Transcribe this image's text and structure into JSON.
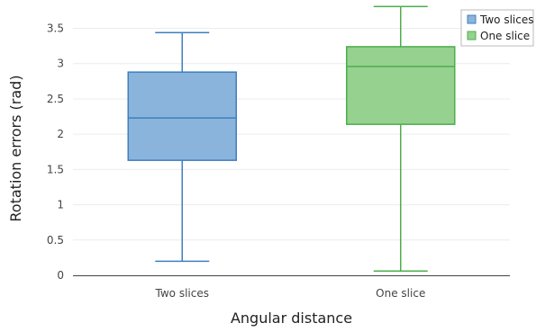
{
  "chart_data": {
    "type": "box",
    "xlabel": "Angular distance",
    "ylabel": "Rotation errors (rad)",
    "categories": [
      "Two slices",
      "One slice"
    ],
    "ylim": [
      0,
      3.8
    ],
    "yticks": [
      0,
      0.5,
      1,
      1.5,
      2,
      2.5,
      3,
      3.5
    ],
    "ytick_labels": [
      "0",
      "0.5",
      "1",
      "1.5",
      "2",
      "2.5",
      "3",
      "3.5"
    ],
    "grid": true,
    "legend_position": "top-right",
    "series": [
      {
        "name": "Two slices",
        "min": 0.2,
        "q1": 1.63,
        "median": 2.23,
        "q3": 2.88,
        "max": 3.44,
        "fill": "#8ab4dc",
        "stroke": "#3f7fbf"
      },
      {
        "name": "One slice",
        "min": 0.06,
        "q1": 2.14,
        "median": 2.96,
        "q3": 3.24,
        "max": 3.81,
        "fill": "#96d18f",
        "stroke": "#4cae4c"
      }
    ]
  }
}
